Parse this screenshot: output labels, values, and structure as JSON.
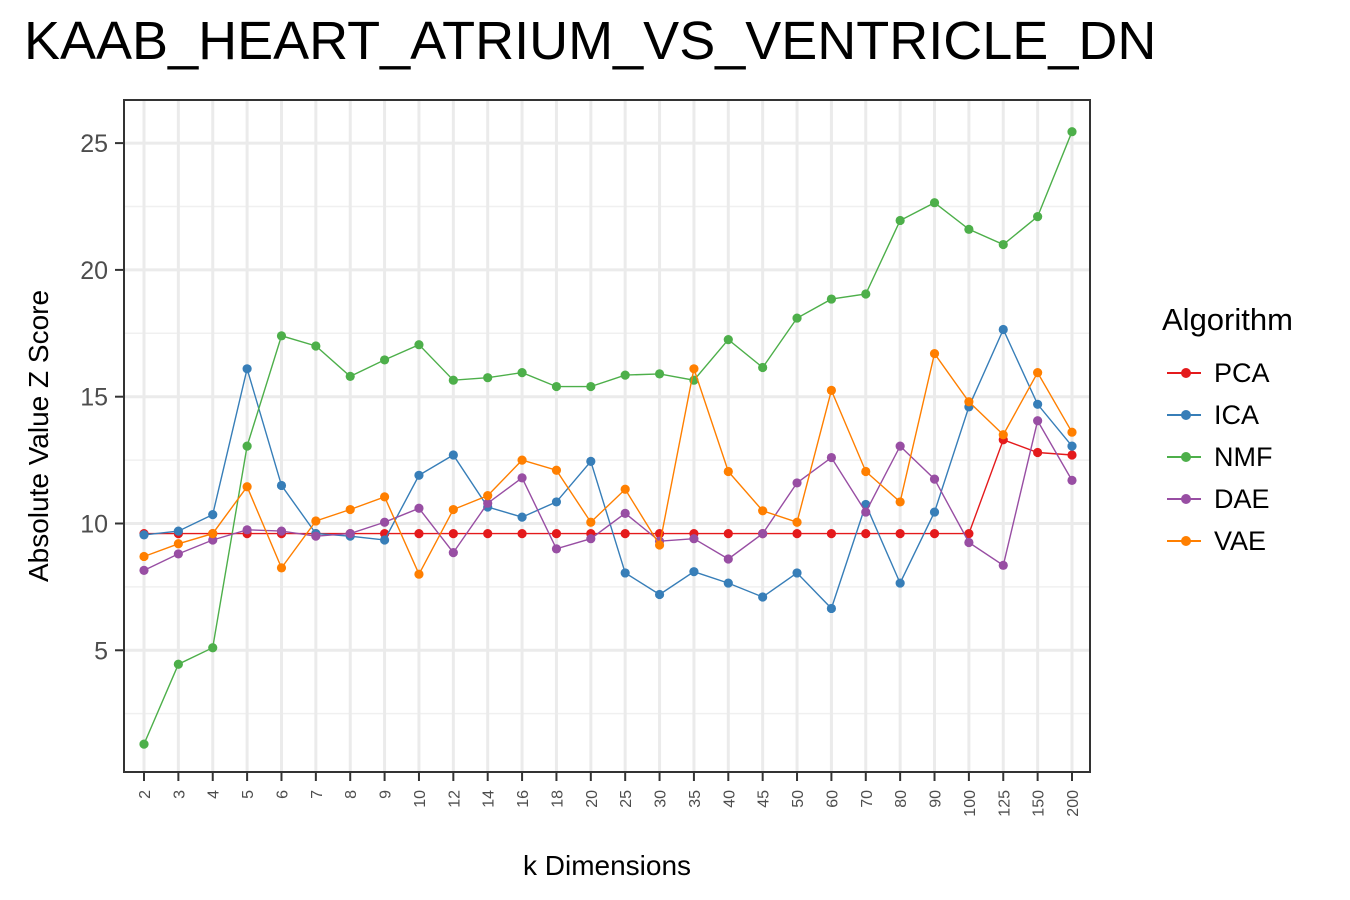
{
  "chart_data": {
    "type": "line",
    "title": "KAAB_HEART_ATRIUM_VS_VENTRICLE_DN",
    "xlabel": "k Dimensions",
    "ylabel": "Absolute Value Z Score",
    "categories": [
      "2",
      "3",
      "4",
      "5",
      "6",
      "7",
      "8",
      "9",
      "10",
      "12",
      "14",
      "16",
      "18",
      "20",
      "25",
      "30",
      "35",
      "40",
      "45",
      "50",
      "60",
      "70",
      "80",
      "90",
      "100",
      "125",
      "150",
      "200"
    ],
    "ylim": [
      0.2,
      26.7
    ],
    "yticks": [
      5,
      10,
      15,
      20,
      25
    ],
    "grid": true,
    "legend": {
      "title": "Algorithm",
      "position": "right"
    },
    "series": [
      {
        "name": "PCA",
        "color": "#e41a1c",
        "values": [
          9.6,
          9.6,
          9.6,
          9.6,
          9.6,
          9.6,
          9.6,
          9.6,
          9.6,
          9.6,
          9.6,
          9.6,
          9.6,
          9.6,
          9.6,
          9.6,
          9.6,
          9.6,
          9.6,
          9.6,
          9.6,
          9.6,
          9.6,
          9.6,
          9.6,
          13.3,
          12.8,
          12.7
        ]
      },
      {
        "name": "ICA",
        "color": "#377eb8",
        "values": [
          9.55,
          9.7,
          10.35,
          16.1,
          11.5,
          9.6,
          9.5,
          9.35,
          11.9,
          12.7,
          10.65,
          10.25,
          10.85,
          12.45,
          8.05,
          7.2,
          8.1,
          7.65,
          7.1,
          8.05,
          6.65,
          10.75,
          7.65,
          10.45,
          14.6,
          17.65,
          14.7,
          13.05
        ]
      },
      {
        "name": "NMF",
        "color": "#4daf4a",
        "values": [
          1.3,
          4.45,
          5.1,
          13.05,
          17.4,
          17.0,
          15.8,
          16.45,
          17.05,
          15.65,
          15.75,
          15.95,
          15.4,
          15.4,
          15.85,
          15.9,
          15.65,
          17.25,
          16.15,
          18.1,
          18.85,
          19.05,
          21.95,
          22.65,
          21.6,
          21.0,
          22.1,
          25.45
        ]
      },
      {
        "name": "DAE",
        "color": "#984ea3",
        "values": [
          8.15,
          8.8,
          9.35,
          9.75,
          9.7,
          9.5,
          9.6,
          10.05,
          10.6,
          8.85,
          10.8,
          11.8,
          9.0,
          9.4,
          10.4,
          9.3,
          9.4,
          8.6,
          9.6,
          11.6,
          12.6,
          10.45,
          13.05,
          11.75,
          9.25,
          8.35,
          14.05,
          11.7
        ]
      },
      {
        "name": "VAE",
        "color": "#ff7f00",
        "values": [
          8.7,
          9.2,
          9.6,
          11.45,
          8.25,
          10.1,
          10.55,
          11.05,
          8.0,
          10.55,
          11.1,
          12.5,
          12.1,
          10.05,
          11.35,
          9.15,
          16.1,
          12.05,
          10.5,
          10.05,
          15.25,
          12.05,
          10.85,
          16.7,
          14.8,
          13.5,
          15.95,
          13.6
        ]
      }
    ]
  }
}
